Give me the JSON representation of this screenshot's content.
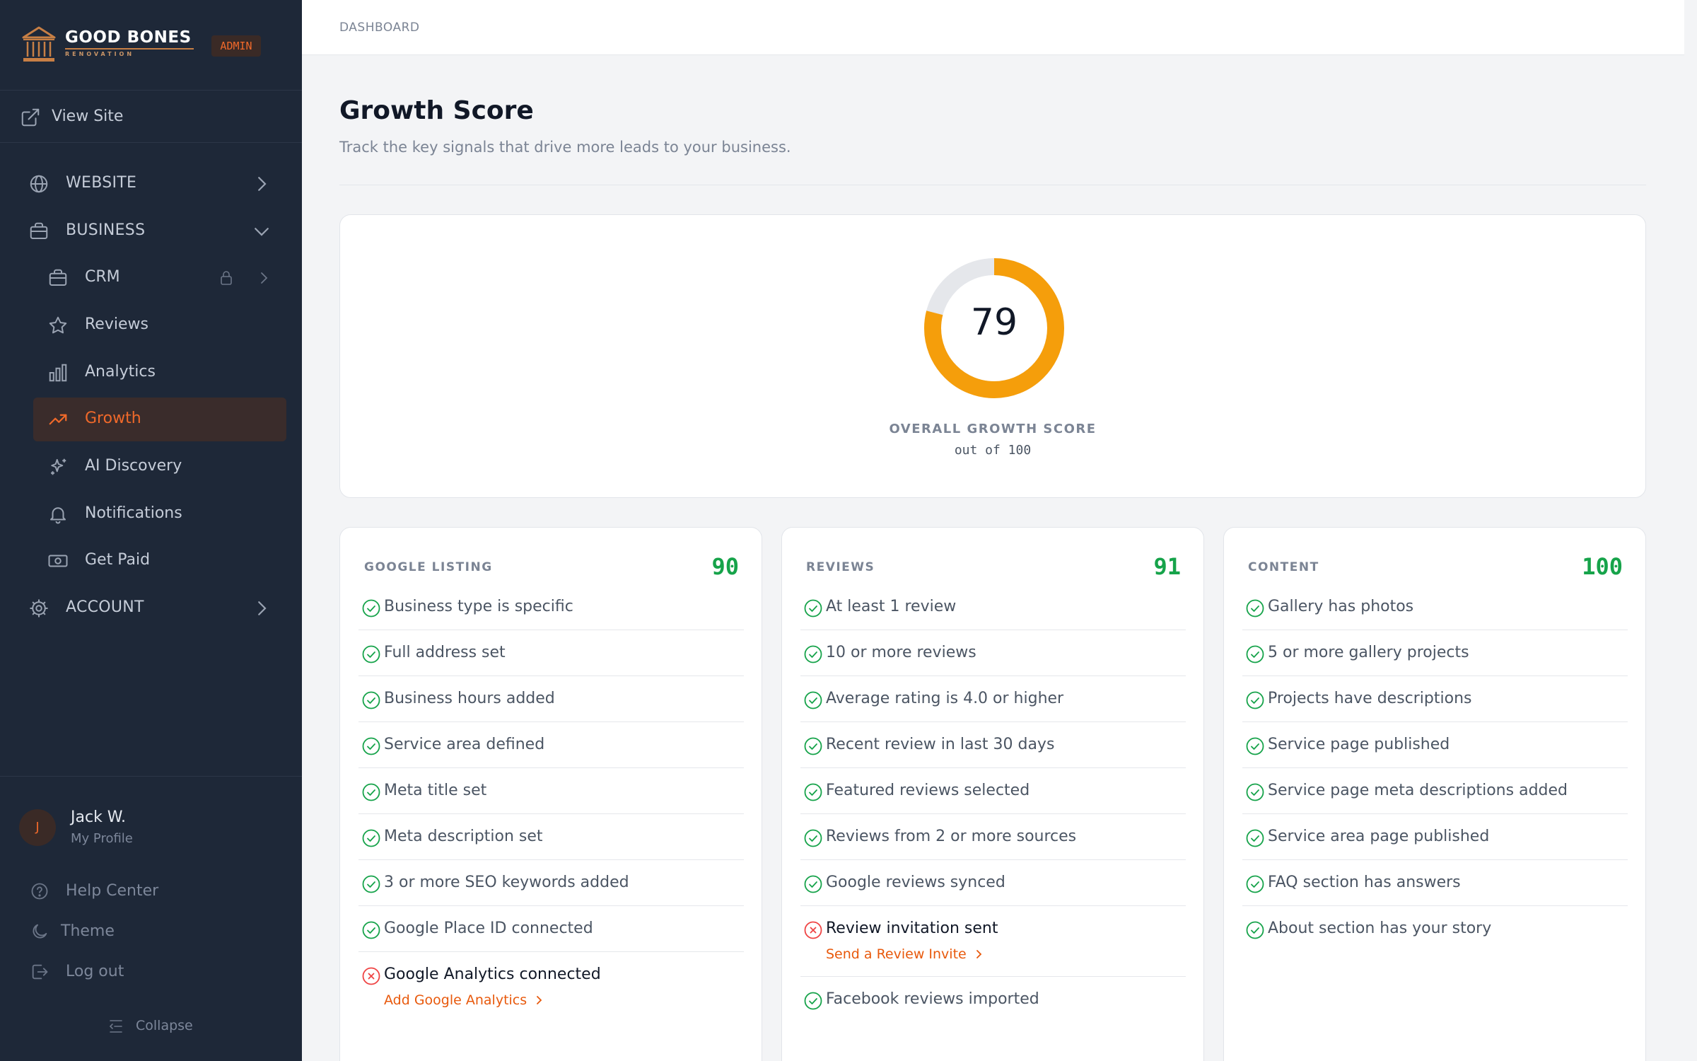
{
  "brand": {
    "name": "GOOD BONES",
    "tagline": "RENOVATION",
    "badge": "ADMIN"
  },
  "sidebar": {
    "view_site": "View Site",
    "items": [
      {
        "label": "WEBSITE",
        "icon": "globe-icon"
      },
      {
        "label": "BUSINESS",
        "icon": "briefcase-icon"
      },
      {
        "label": "CRM",
        "icon": "briefcase-icon",
        "locked": true
      },
      {
        "label": "Reviews",
        "icon": "star-icon"
      },
      {
        "label": "Analytics",
        "icon": "bar-chart-icon"
      },
      {
        "label": "Growth",
        "icon": "trending-up-icon",
        "active": true
      },
      {
        "label": "AI Discovery",
        "icon": "sparkles-icon"
      },
      {
        "label": "Notifications",
        "icon": "bell-icon"
      },
      {
        "label": "Get Paid",
        "icon": "banknote-icon"
      },
      {
        "label": "ACCOUNT",
        "icon": "gear-icon"
      }
    ],
    "user": {
      "initial": "J",
      "name": "Jack W.",
      "subtitle": "My Profile"
    },
    "help": "Help Center",
    "theme": "Theme",
    "logout": "Log out",
    "collapse": "Collapse"
  },
  "breadcrumb": "DASHBOARD",
  "page": {
    "title": "Growth Score",
    "subtitle": "Track the key signals that drive more leads to your business."
  },
  "overall": {
    "score": 79,
    "max": 100,
    "label": "OVERALL GROWTH SCORE",
    "sub": "out of 100"
  },
  "colors": {
    "accent": "#f59e0b",
    "brand": "#f0692a",
    "pass": "#16a34a",
    "fail": "#ef4444",
    "sidebar": "#1e2838"
  },
  "categories": [
    {
      "title": "GOOGLE LISTING",
      "score": "90",
      "items": [
        {
          "label": "Business type is specific",
          "pass": true
        },
        {
          "label": "Full address set",
          "pass": true
        },
        {
          "label": "Business hours added",
          "pass": true
        },
        {
          "label": "Service area defined",
          "pass": true
        },
        {
          "label": "Meta title set",
          "pass": true
        },
        {
          "label": "Meta description set",
          "pass": true
        },
        {
          "label": "3 or more SEO keywords added",
          "pass": true
        },
        {
          "label": "Google Place ID connected",
          "pass": true
        },
        {
          "label": "Google Analytics connected",
          "pass": false,
          "action": "Add Google Analytics"
        }
      ]
    },
    {
      "title": "REVIEWS",
      "score": "91",
      "items": [
        {
          "label": "At least 1 review",
          "pass": true
        },
        {
          "label": "10 or more reviews",
          "pass": true
        },
        {
          "label": "Average rating is 4.0 or higher",
          "pass": true
        },
        {
          "label": "Recent review in last 30 days",
          "pass": true
        },
        {
          "label": "Featured reviews selected",
          "pass": true
        },
        {
          "label": "Reviews from 2 or more sources",
          "pass": true
        },
        {
          "label": "Google reviews synced",
          "pass": true
        },
        {
          "label": "Review invitation sent",
          "pass": false,
          "action": "Send a Review Invite"
        },
        {
          "label": "Facebook reviews imported",
          "pass": true
        }
      ]
    },
    {
      "title": "CONTENT",
      "score": "100",
      "items": [
        {
          "label": "Gallery has photos",
          "pass": true
        },
        {
          "label": "5 or more gallery projects",
          "pass": true
        },
        {
          "label": "Projects have descriptions",
          "pass": true
        },
        {
          "label": "Service page published",
          "pass": true
        },
        {
          "label": "Service page meta descriptions added",
          "pass": true
        },
        {
          "label": "Service area page published",
          "pass": true
        },
        {
          "label": "FAQ section has answers",
          "pass": true
        },
        {
          "label": "About section has your story",
          "pass": true
        }
      ]
    }
  ]
}
